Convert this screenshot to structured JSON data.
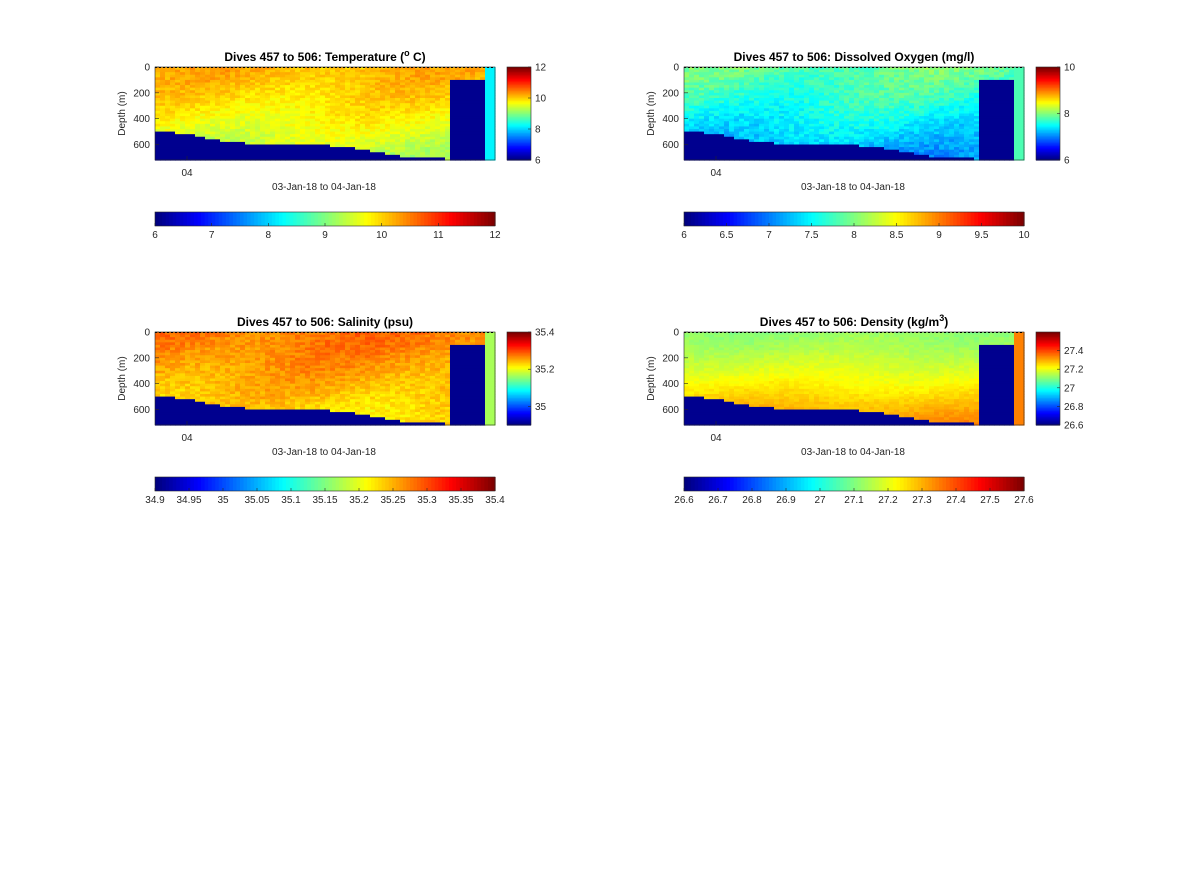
{
  "colors": {
    "axis": "#262626",
    "background": "#ffffff",
    "seabed": "#00008f"
  },
  "colormap": "jet",
  "chart_data": [
    {
      "type": "heatmap",
      "variable": "temperature",
      "title_main": "Dives 457 to 506: Temperature (",
      "title_sup": "o",
      "title_end": " C)",
      "ylabel": "Depth (m)",
      "ylim": [
        0,
        720
      ],
      "yticks": [
        "0",
        "200",
        "400",
        "600"
      ],
      "ytick_values": [
        0,
        200,
        400,
        600
      ],
      "xtick_label": "04",
      "xlabel": "03-Jan-18 to 04-Jan-18",
      "clim": [
        6,
        12
      ],
      "side_cbar_ticks": [
        "6",
        "8",
        "10",
        "12"
      ],
      "side_cbar_values": [
        6,
        8,
        10,
        12
      ],
      "bottom_cbar_ticks": [
        "6",
        "7",
        "8",
        "9",
        "10",
        "11",
        "12"
      ],
      "bottom_cbar_values": [
        6,
        7,
        8,
        9,
        10,
        11,
        12
      ],
      "surface_value": 10.2,
      "deep_value": 9.3,
      "right_column_value": 8.2,
      "noise": 0.35
    },
    {
      "type": "heatmap",
      "variable": "dissolved_oxygen",
      "title_main": "Dives 457 to 506: Dissolved Oxygen (mg/l)",
      "title_sup": "",
      "title_end": "",
      "ylabel": "Depth (m)",
      "ylim": [
        0,
        720
      ],
      "yticks": [
        "0",
        "200",
        "400",
        "600"
      ],
      "ytick_values": [
        0,
        200,
        400,
        600
      ],
      "xtick_label": "04",
      "xlabel": "03-Jan-18 to 04-Jan-18",
      "clim": [
        6,
        10
      ],
      "side_cbar_ticks": [
        "6",
        "8",
        "10"
      ],
      "side_cbar_values": [
        6,
        8,
        10
      ],
      "bottom_cbar_ticks": [
        "6",
        "6.5",
        "7",
        "7.5",
        "8",
        "8.5",
        "9",
        "9.5",
        "10"
      ],
      "bottom_cbar_values": [
        6,
        6.5,
        7,
        7.5,
        8,
        8.5,
        9,
        9.5,
        10
      ],
      "surface_value": 7.9,
      "deep_value": 7.1,
      "right_column_value": 7.8,
      "noise": 0.3
    },
    {
      "type": "heatmap",
      "variable": "salinity",
      "title_main": "Dives 457 to 506: Salinity (psu)",
      "title_sup": "",
      "title_end": "",
      "ylabel": "Depth (m)",
      "ylim": [
        0,
        720
      ],
      "yticks": [
        "0",
        "200",
        "400",
        "600"
      ],
      "ytick_values": [
        0,
        200,
        400,
        600
      ],
      "xtick_label": "04",
      "xlabel": "03-Jan-18 to 04-Jan-18",
      "clim": [
        34.9,
        35.4
      ],
      "side_cbar_ticks": [
        "35",
        "35.2",
        "35.4"
      ],
      "side_cbar_values": [
        35,
        35.2,
        35.4
      ],
      "bottom_cbar_ticks": [
        "34.9",
        "34.95",
        "35",
        "35.05",
        "35.1",
        "35.15",
        "35.2",
        "35.25",
        "35.3",
        "35.35",
        "35.4"
      ],
      "bottom_cbar_values": [
        34.9,
        34.95,
        35,
        35.05,
        35.1,
        35.15,
        35.2,
        35.25,
        35.3,
        35.35,
        35.4
      ],
      "surface_value": 35.28,
      "deep_value": 35.22,
      "right_column_value": 35.17,
      "noise": 0.03
    },
    {
      "type": "heatmap",
      "variable": "density",
      "title_main": "Dives 457 to 506: Density (kg/m",
      "title_sup": "3",
      "title_end": ")",
      "ylabel": "Depth (m)",
      "ylim": [
        0,
        720
      ],
      "yticks": [
        "0",
        "200",
        "400",
        "600"
      ],
      "ytick_values": [
        0,
        200,
        400,
        600
      ],
      "xtick_label": "04",
      "xlabel": "03-Jan-18 to 04-Jan-18",
      "clim": [
        26.6,
        27.6
      ],
      "side_cbar_ticks": [
        "26.6",
        "26.8",
        "27",
        "27.2",
        "27.4"
      ],
      "side_cbar_values": [
        26.6,
        26.8,
        27,
        27.2,
        27.4
      ],
      "bottom_cbar_ticks": [
        "26.6",
        "26.7",
        "26.8",
        "26.9",
        "27",
        "27.1",
        "27.2",
        "27.3",
        "27.4",
        "27.5",
        "27.6"
      ],
      "bottom_cbar_values": [
        26.6,
        26.7,
        26.8,
        26.9,
        27,
        27.1,
        27.2,
        27.3,
        27.4,
        27.5,
        27.6
      ],
      "surface_value": 27.12,
      "deep_value": 27.34,
      "right_column_value": 27.35,
      "noise": 0.03
    }
  ]
}
